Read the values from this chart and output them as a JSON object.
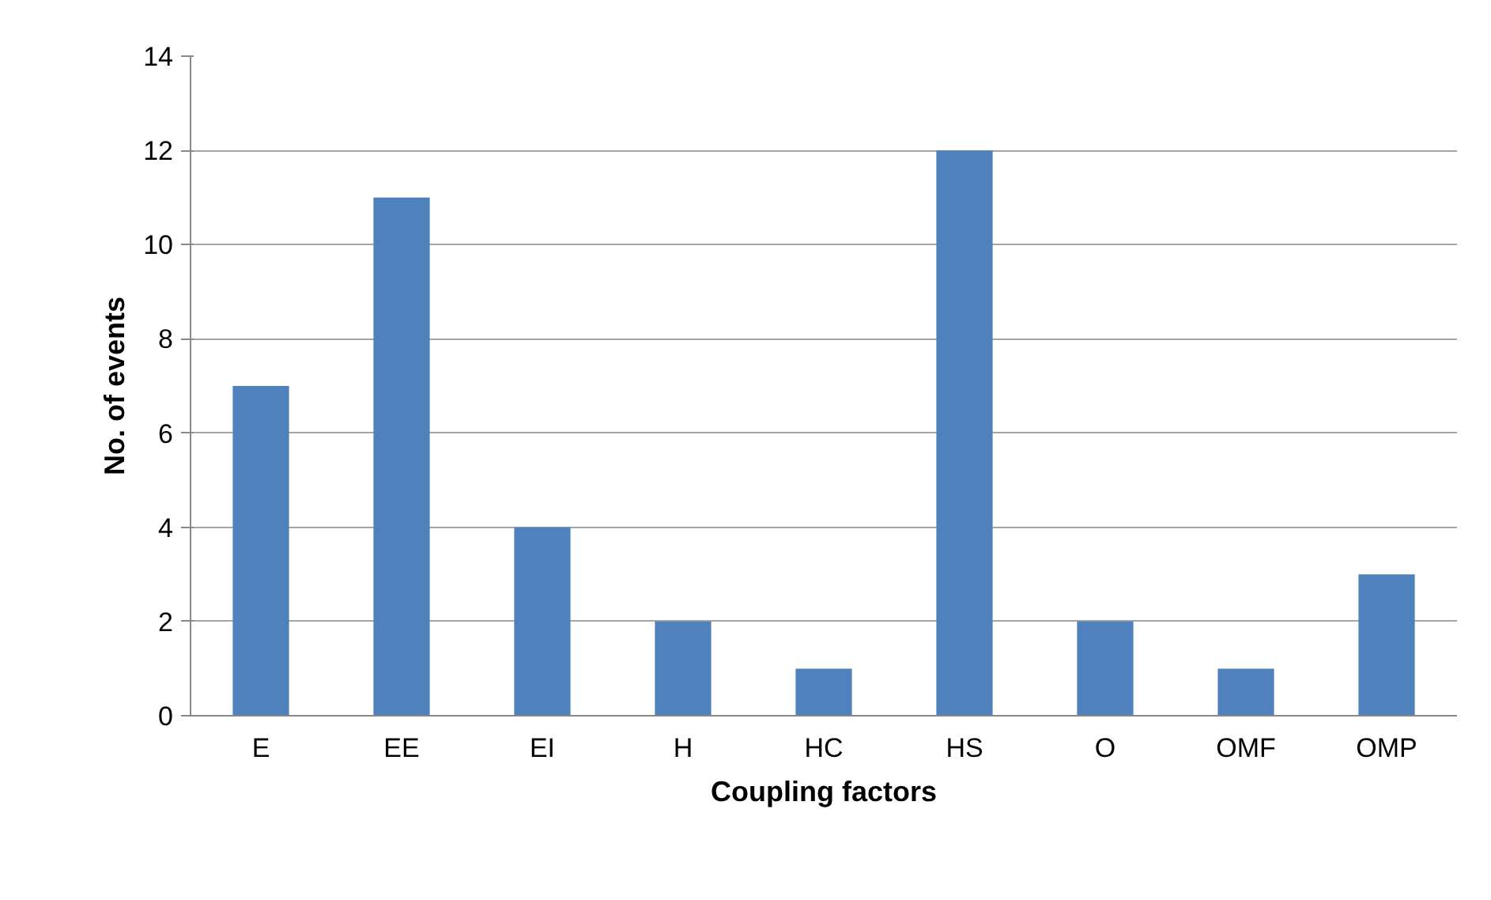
{
  "chart_data": {
    "type": "bar",
    "xlabel": "Coupling factors",
    "ylabel": "No. of events",
    "categories": [
      "E",
      "EE",
      "EI",
      "H",
      "HC",
      "HS",
      "O",
      "OMF",
      "OMP"
    ],
    "values": [
      7,
      11,
      4,
      2,
      1,
      12,
      2,
      1,
      3
    ],
    "color": "#4f81bd",
    "ylim": [
      0,
      14
    ],
    "yticks": [
      0,
      2,
      4,
      6,
      8,
      10,
      12,
      14
    ],
    "grid": "y"
  }
}
